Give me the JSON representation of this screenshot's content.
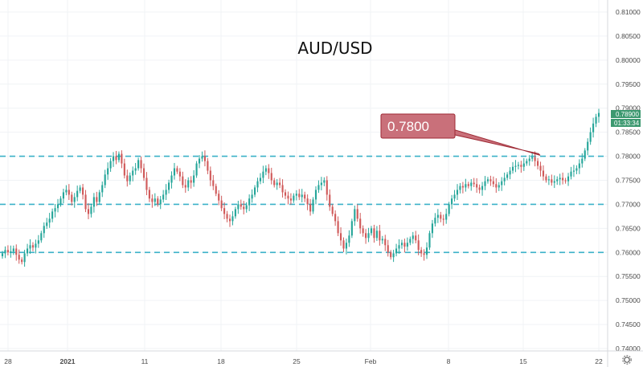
{
  "chart_data": {
    "type": "candlestick",
    "title": "AUD/USD",
    "x_tick_labels": [
      "28",
      "2021",
      "11",
      "18",
      "25",
      "Feb",
      "8",
      "15",
      "22"
    ],
    "y_ticks": [
      "0.81000",
      "0.80500",
      "0.80000",
      "0.79500",
      "0.79000",
      "0.78500",
      "0.78000",
      "0.77500",
      "0.77000",
      "0.76500",
      "0.76000",
      "0.75500",
      "0.75000",
      "0.74500",
      "0.74000"
    ],
    "ylim": [
      0.7395,
      0.8125
    ],
    "horizontal_levels": [
      0.78,
      0.77,
      0.76
    ],
    "level_color": "#3ab1c8",
    "up_color": "#26a69a",
    "down_color": "#d05a5a",
    "last_price": "0.78900",
    "countdown": "01:33:34",
    "price_tag_color": "#3d9970",
    "annotation": {
      "label": "0.7800",
      "target_price": 0.7802,
      "box_color": "#c9707a",
      "border_color": "#9e2a35"
    },
    "closes": [
      0.7598,
      0.7605,
      0.76,
      0.7602,
      0.7608,
      0.7595,
      0.7585,
      0.758,
      0.7598,
      0.7608,
      0.7615,
      0.761,
      0.7618,
      0.7625,
      0.764,
      0.7655,
      0.7662,
      0.767,
      0.7685,
      0.7692,
      0.77,
      0.7712,
      0.7725,
      0.773,
      0.772,
      0.7705,
      0.7715,
      0.7728,
      0.7735,
      0.772,
      0.769,
      0.768,
      0.7695,
      0.7715,
      0.7705,
      0.7725,
      0.774,
      0.7762,
      0.7775,
      0.779,
      0.78,
      0.7792,
      0.7805,
      0.7785,
      0.776,
      0.7748,
      0.776,
      0.777,
      0.7775,
      0.7792,
      0.7775,
      0.7755,
      0.773,
      0.7712,
      0.7705,
      0.7712,
      0.77,
      0.771,
      0.772,
      0.773,
      0.7745,
      0.776,
      0.7775,
      0.7768,
      0.7758,
      0.774,
      0.7735,
      0.775,
      0.7745,
      0.776,
      0.7785,
      0.7795,
      0.78,
      0.779,
      0.777,
      0.775,
      0.7738,
      0.7722,
      0.7708,
      0.7692,
      0.768,
      0.767,
      0.7665,
      0.7675,
      0.769,
      0.77,
      0.7695,
      0.769,
      0.7698,
      0.7712,
      0.772,
      0.7735,
      0.7748,
      0.7755,
      0.7768,
      0.7775,
      0.7765,
      0.775,
      0.774,
      0.7745,
      0.774,
      0.7725,
      0.7718,
      0.7712,
      0.7708,
      0.7718,
      0.7722,
      0.7715,
      0.772,
      0.7712,
      0.77,
      0.7685,
      0.771,
      0.773,
      0.774,
      0.7745,
      0.775,
      0.772,
      0.7695,
      0.768,
      0.7665,
      0.764,
      0.7625,
      0.7608,
      0.762,
      0.7635,
      0.7665,
      0.769,
      0.767,
      0.765,
      0.764,
      0.763,
      0.764,
      0.765,
      0.763,
      0.7645,
      0.7625,
      0.7628,
      0.7615,
      0.76,
      0.759,
      0.7598,
      0.7608,
      0.7615,
      0.762,
      0.7612,
      0.762,
      0.7628,
      0.7635,
      0.7625,
      0.7605,
      0.7598,
      0.7595,
      0.761,
      0.764,
      0.766,
      0.7672,
      0.7678,
      0.767,
      0.7668,
      0.768,
      0.77,
      0.7712,
      0.772,
      0.773,
      0.7738,
      0.7735,
      0.7742,
      0.7738,
      0.7745,
      0.7742,
      0.7735,
      0.773,
      0.7738,
      0.7748,
      0.7752,
      0.7748,
      0.7742,
      0.7735,
      0.774,
      0.7748,
      0.7755,
      0.7762,
      0.777,
      0.7778,
      0.778,
      0.7782,
      0.7778,
      0.7785,
      0.779,
      0.7795,
      0.7798,
      0.779,
      0.778,
      0.777,
      0.7758,
      0.775,
      0.7752,
      0.7745,
      0.7748,
      0.7752,
      0.7755,
      0.775,
      0.7748,
      0.7758,
      0.7768,
      0.777,
      0.7775,
      0.7785,
      0.7795,
      0.7812,
      0.783,
      0.785,
      0.7868,
      0.7882,
      0.789
    ]
  }
}
